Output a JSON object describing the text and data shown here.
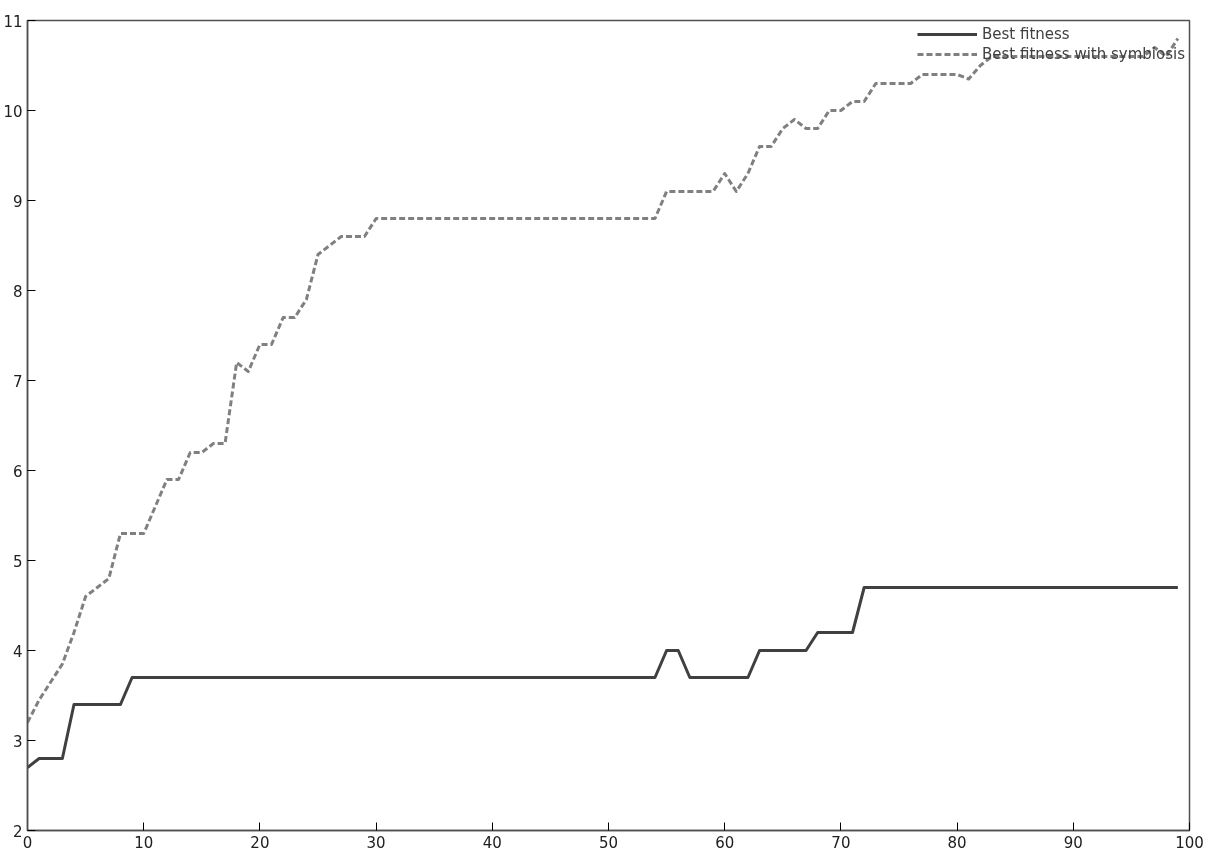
{
  "chart_data": {
    "type": "line",
    "xlim": [
      0,
      100
    ],
    "ylim": [
      2,
      11
    ],
    "xticks": [
      0,
      10,
      20,
      30,
      40,
      50,
      60,
      70,
      80,
      90,
      100
    ],
    "yticks": [
      2,
      3,
      4,
      5,
      6,
      7,
      8,
      9,
      10,
      11
    ],
    "grid": false,
    "legend": "top right",
    "series": [
      {
        "name": "Best fitness",
        "color": "#404040",
        "line_style": "solid",
        "x": [
          0,
          1,
          3,
          4,
          8,
          9,
          54,
          55,
          56,
          57,
          62,
          63,
          67,
          68,
          71,
          72,
          99
        ],
        "values": [
          2.7,
          2.8,
          2.8,
          3.4,
          3.4,
          3.7,
          3.7,
          4.0,
          4.0,
          3.7,
          3.7,
          4.0,
          4.0,
          4.2,
          4.2,
          4.7,
          4.7
        ]
      },
      {
        "name": "Best fitness with symbiosis",
        "color": "#808080",
        "line_style": "dashed",
        "x": [
          0,
          1,
          2,
          3,
          4,
          5,
          6,
          7,
          8,
          10,
          11,
          12,
          13,
          14,
          15,
          16,
          17,
          18,
          19,
          20,
          21,
          22,
          23,
          24,
          25,
          26,
          27,
          29,
          30,
          54,
          55,
          59,
          60,
          61,
          62,
          63,
          64,
          65,
          66,
          67,
          68,
          69,
          70,
          71,
          72,
          73,
          76,
          77,
          80,
          81,
          82,
          83,
          85,
          96,
          97,
          98,
          99
        ],
        "values": [
          3.2,
          3.45,
          3.65,
          3.85,
          4.2,
          4.6,
          4.7,
          4.8,
          5.3,
          5.3,
          5.6,
          5.9,
          5.9,
          6.2,
          6.2,
          6.3,
          6.3,
          7.2,
          7.1,
          7.4,
          7.4,
          7.7,
          7.7,
          7.9,
          8.4,
          8.5,
          8.6,
          8.6,
          8.8,
          8.8,
          9.1,
          9.1,
          9.3,
          9.1,
          9.3,
          9.6,
          9.6,
          9.8,
          9.9,
          9.8,
          9.8,
          10.0,
          10.0,
          10.1,
          10.1,
          10.3,
          10.3,
          10.4,
          10.4,
          10.35,
          10.5,
          10.6,
          10.6,
          10.6,
          10.7,
          10.6,
          10.8
        ]
      }
    ]
  }
}
